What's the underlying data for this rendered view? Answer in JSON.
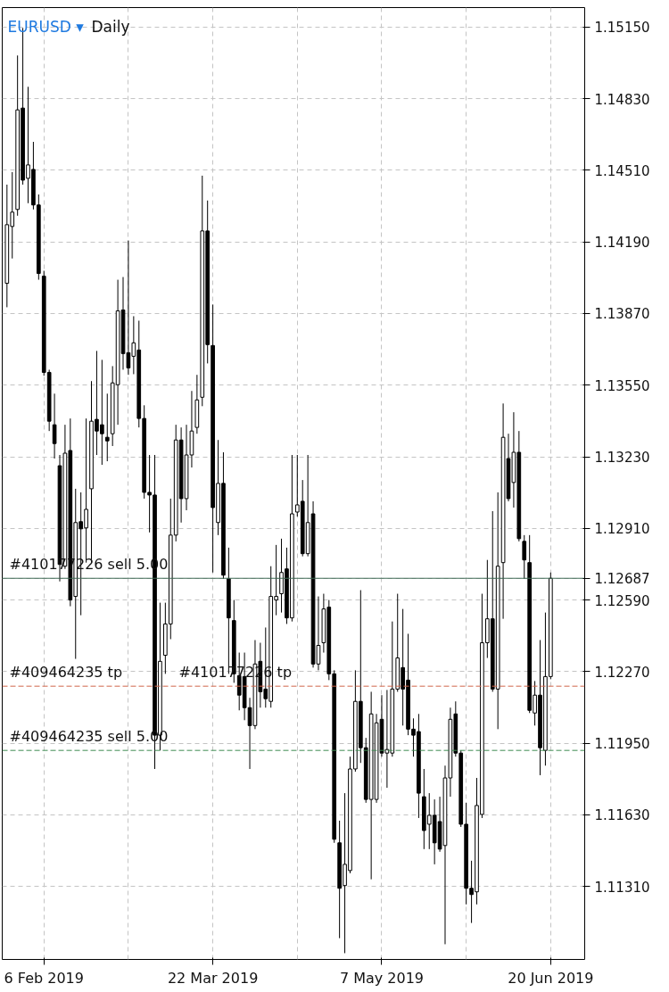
{
  "chart_data": {
    "type": "candlestick",
    "title": "EURUSD ▾",
    "subtitle": "Daily",
    "categories": [
      null,
      null,
      null,
      null,
      null,
      null,
      null,
      "6 Feb 2019",
      null,
      null,
      null,
      null,
      null,
      null,
      null,
      null,
      null,
      null,
      null,
      null,
      null,
      null,
      null,
      null,
      null,
      null,
      null,
      null,
      null,
      null,
      null,
      null,
      null,
      null,
      null,
      null,
      null,
      null,
      null,
      "22 Mar 2019",
      null,
      null,
      null,
      null,
      null,
      null,
      null,
      null,
      null,
      null,
      null,
      null,
      null,
      null,
      null,
      null,
      null,
      null,
      null,
      null,
      null,
      null,
      null,
      null,
      null,
      null,
      null,
      null,
      null,
      null,
      null,
      "7 May 2019",
      null,
      null,
      null,
      null,
      null,
      null,
      null,
      null,
      null,
      null,
      null,
      null,
      null,
      null,
      null,
      null,
      null,
      null,
      null,
      null,
      null,
      null,
      null,
      null,
      null,
      null,
      null,
      null,
      null,
      null,
      null,
      "20 Jun 2019"
    ],
    "ohlc": [
      [
        1.14005,
        1.14446,
        1.13898,
        1.14267
      ],
      [
        1.14259,
        1.14502,
        1.14116,
        1.14323
      ],
      [
        1.14335,
        1.15023,
        1.14307,
        1.1478
      ],
      [
        1.14788,
        1.15146,
        1.14446,
        1.14466
      ],
      [
        1.14474,
        1.14883,
        1.14363,
        1.14534
      ],
      [
        1.14514,
        1.14637,
        1.14335,
        1.14355
      ],
      [
        1.14355,
        1.14402,
        1.14021,
        1.14049
      ],
      [
        1.14037,
        1.14061,
        1.13592,
        1.13607
      ],
      [
        1.13607,
        1.13619,
        1.13345,
        1.13389
      ],
      [
        1.13373,
        1.13512,
        1.13222,
        1.13289
      ],
      [
        1.1319,
        1.13238,
        1.12673,
        1.12749
      ],
      [
        1.12741,
        1.13373,
        1.12729,
        1.13246
      ],
      [
        1.13258,
        1.13401,
        1.12562,
        1.1259
      ],
      [
        1.12606,
        1.13087,
        1.12327,
        1.12936
      ],
      [
        1.1294,
        1.13071,
        1.12522,
        1.12908
      ],
      [
        1.12912,
        1.13401,
        1.12757,
        1.12995
      ],
      [
        1.13087,
        1.13568,
        1.12757,
        1.13389
      ],
      [
        1.13397,
        1.13703,
        1.13238,
        1.13345
      ],
      [
        1.13373,
        1.13663,
        1.13194,
        1.13333
      ],
      [
        1.13317,
        1.13512,
        1.1321,
        1.13301
      ],
      [
        1.13333,
        1.13635,
        1.13278,
        1.1356
      ],
      [
        1.13552,
        1.14021,
        1.13373,
        1.13882
      ],
      [
        1.13886,
        1.14033,
        1.13619,
        1.13691
      ],
      [
        1.13695,
        1.14196,
        1.13596,
        1.13627
      ],
      [
        1.13679,
        1.13858,
        1.13599,
        1.13739
      ],
      [
        1.13707,
        1.13838,
        1.13361,
        1.13401
      ],
      [
        1.13401,
        1.1346,
        1.13043,
        1.13071
      ],
      [
        1.13071,
        1.13238,
        1.12892,
        1.13059
      ],
      [
        1.13059,
        1.13238,
        1.11835,
        1.11986
      ],
      [
        1.11986,
        1.12578,
        1.11918,
        1.12316
      ],
      [
        1.12343,
        1.12578,
        1.1226,
        1.12483
      ],
      [
        1.12483,
        1.13043,
        1.12415,
        1.1288
      ],
      [
        1.1288,
        1.13373,
        1.12852,
        1.13305
      ],
      [
        1.13305,
        1.13361,
        1.12936,
        1.13043
      ],
      [
        1.13043,
        1.13373,
        1.12991,
        1.13238
      ],
      [
        1.13238,
        1.13524,
        1.13182,
        1.13345
      ],
      [
        1.13361,
        1.13596,
        1.13333,
        1.13484
      ],
      [
        1.13496,
        1.14486,
        1.13456,
        1.14239
      ],
      [
        1.14239,
        1.14375,
        1.13647,
        1.13731
      ],
      [
        1.13727,
        1.1391,
        1.12713,
        1.13003
      ],
      [
        1.12936,
        1.13305,
        1.1288,
        1.13111
      ],
      [
        1.13111,
        1.1325,
        1.12685,
        1.12701
      ],
      [
        1.12685,
        1.12824,
        1.1226,
        1.1251
      ],
      [
        1.12498,
        1.1259,
        1.1222,
        1.1226
      ],
      [
        1.12252,
        1.12355,
        1.12097,
        1.12165
      ],
      [
        1.12248,
        1.12355,
        1.12053,
        1.12109
      ],
      [
        1.12109,
        1.12153,
        1.11835,
        1.12029
      ],
      [
        1.12029,
        1.12411,
        1.12013,
        1.12304
      ],
      [
        1.12316,
        1.12399,
        1.12109,
        1.1218
      ],
      [
        1.12192,
        1.12467,
        1.12109,
        1.12149
      ],
      [
        1.12137,
        1.12741,
        1.12109,
        1.12606
      ],
      [
        1.1259,
        1.12836,
        1.12522,
        1.12606
      ],
      [
        1.12618,
        1.12864,
        1.12534,
        1.12713
      ],
      [
        1.12729,
        1.12824,
        1.12483,
        1.1251
      ],
      [
        1.1251,
        1.13238,
        1.12494,
        1.12975
      ],
      [
        1.12983,
        1.13238,
        1.12963,
        1.13015
      ],
      [
        1.13031,
        1.13126,
        1.12785,
        1.12797
      ],
      [
        1.12797,
        1.13238,
        1.12785,
        1.12936
      ],
      [
        1.12975,
        1.13031,
        1.12288,
        1.12304
      ],
      [
        1.12304,
        1.12606,
        1.12276,
        1.12387
      ],
      [
        1.12399,
        1.12618,
        1.12355,
        1.1255
      ],
      [
        1.12558,
        1.1259,
        1.12232,
        1.1226
      ],
      [
        1.1226,
        1.12276,
        1.11505,
        1.11521
      ],
      [
        1.11505,
        1.11604,
        1.11079,
        1.11302
      ],
      [
        1.11314,
        1.11727,
        1.11012,
        1.11409
      ],
      [
        1.11381,
        1.1189,
        1.11369,
        1.11835
      ],
      [
        1.11835,
        1.12276,
        1.11823,
        1.12137
      ],
      [
        1.12137,
        1.12634,
        1.11862,
        1.1193
      ],
      [
        1.1193,
        1.11974,
        1.11684,
        1.11699
      ],
      [
        1.11699,
        1.1218,
        1.11342,
        1.12081
      ],
      [
        1.11699,
        1.12081,
        1.11684,
        1.12041
      ],
      [
        1.12057,
        1.12165,
        1.1189,
        1.11906
      ],
      [
        1.11906,
        1.12188,
        1.11751,
        1.11922
      ],
      [
        1.11906,
        1.12494,
        1.1189,
        1.12192
      ],
      [
        1.12192,
        1.12618,
        1.1218,
        1.12331
      ],
      [
        1.12288,
        1.1255,
        1.12029,
        1.12192
      ],
      [
        1.12232,
        1.12439,
        1.11986,
        1.12013
      ],
      [
        1.12013,
        1.12061,
        1.1189,
        1.11986
      ],
      [
        1.12002,
        1.12081,
        1.11616,
        1.11727
      ],
      [
        1.11711,
        1.11835,
        1.11477,
        1.1156
      ],
      [
        1.11588,
        1.11727,
        1.11477,
        1.11628
      ],
      [
        1.11628,
        1.11699,
        1.11409,
        1.11505
      ],
      [
        1.116,
        1.11711,
        1.11465,
        1.11477
      ],
      [
        1.11493,
        1.1185,
        1.11052,
        1.11795
      ],
      [
        1.11795,
        1.12109,
        1.11711,
        1.12057
      ],
      [
        1.12081,
        1.12137,
        1.1189,
        1.11906
      ],
      [
        1.11906,
        1.11918,
        1.11576,
        1.11588
      ],
      [
        1.11588,
        1.11684,
        1.1123,
        1.11302
      ],
      [
        1.11302,
        1.11425,
        1.11147,
        1.11274
      ],
      [
        1.11286,
        1.11795,
        1.1123,
        1.11672
      ],
      [
        1.11632,
        1.12618,
        1.11616,
        1.12399
      ],
      [
        1.12399,
        1.12769,
        1.12331,
        1.12506
      ],
      [
        1.12506,
        1.12987,
        1.1218,
        1.12192
      ],
      [
        1.12192,
        1.13071,
        1.12013,
        1.12741
      ],
      [
        1.12757,
        1.13468,
        1.12506,
        1.13317
      ],
      [
        1.13222,
        1.13333,
        1.13031,
        1.13043
      ],
      [
        1.13115,
        1.13429,
        1.13003,
        1.1325
      ],
      [
        1.1325,
        1.13345,
        1.12852,
        1.12864
      ],
      [
        1.12852,
        1.1288,
        1.12685,
        1.12769
      ],
      [
        1.12757,
        1.1288,
        1.12085,
        1.12097
      ],
      [
        1.12085,
        1.12228,
        1.12029,
        1.12165
      ],
      [
        1.12165,
        1.12411,
        1.11807,
        1.1193
      ],
      [
        1.11918,
        1.12534,
        1.1185,
        1.12248
      ],
      [
        1.12248,
        1.12713,
        1.12236,
        1.12687
      ]
    ],
    "ylim": [
      1.10984,
      1.15237
    ],
    "yticks": [
      {
        "value": 1.1131,
        "label": "1.11310"
      },
      {
        "value": 1.1163,
        "label": "1.11630"
      },
      {
        "value": 1.1195,
        "label": "1.11950"
      },
      {
        "value": 1.1227,
        "label": "1.12270"
      },
      {
        "value": 1.1259,
        "label": "1.12590"
      },
      {
        "value": 1.12687,
        "label": "1.12687"
      },
      {
        "value": 1.1291,
        "label": "1.12910"
      },
      {
        "value": 1.1323,
        "label": "1.13230"
      },
      {
        "value": 1.1355,
        "label": "1.13550"
      },
      {
        "value": 1.1387,
        "label": "1.13870"
      },
      {
        "value": 1.1419,
        "label": "1.14190"
      },
      {
        "value": 1.1451,
        "label": "1.14510"
      },
      {
        "value": 1.1483,
        "label": "1.14830"
      },
      {
        "value": 1.1515,
        "label": "1.15150"
      }
    ],
    "grid": true,
    "ref_lines": [
      {
        "axis": "y",
        "value": 1.12687,
        "label": "#410177226 sell 5.00",
        "color": "#3f6b55",
        "line_style": "solid"
      },
      {
        "axis": "y",
        "value": 1.12205,
        "label": "#409464235 tp",
        "color": "#d0664a",
        "line_style": "dashed"
      },
      {
        "axis": "y",
        "value": 1.11918,
        "label": "#409464235 sell 5.00",
        "color": "#3d8a50",
        "line_style": "dashed"
      }
    ],
    "annotations": [
      {
        "text": "#410177226 tp",
        "y": 1.12205
      }
    ]
  }
}
